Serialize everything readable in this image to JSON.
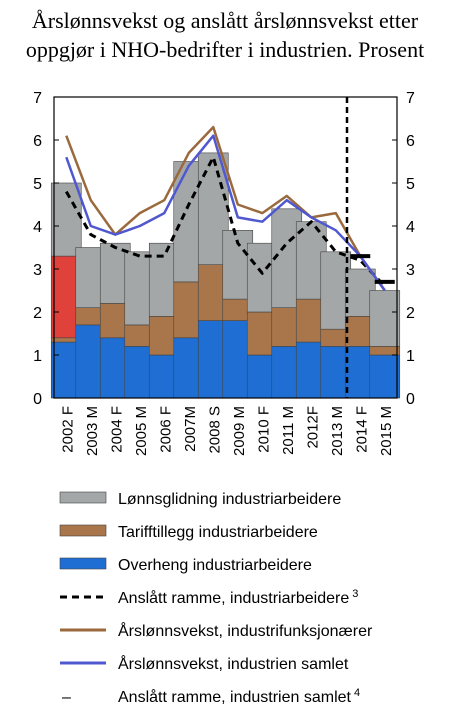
{
  "chart_data": {
    "type": "bar",
    "title_lines": [
      "Årslønnsvekst og anslått årslønnsvekst etter",
      "oppgjør i NHO-bedrifter i industrien. Prosent"
    ],
    "xlabel": "",
    "ylabel": "",
    "ylim": [
      0,
      7
    ],
    "yticks": [
      "0",
      "1",
      "2",
      "3",
      "4",
      "5",
      "6",
      "7"
    ],
    "categories": [
      "2002 F",
      "2003 M",
      "2004 F",
      "2005 M",
      "2006 F",
      "2007M",
      "2008 S",
      "2009 M",
      "2010 F",
      "2011 M",
      "2012F",
      "2013 M",
      "2014 F",
      "2015 M"
    ],
    "stacked_series": [
      {
        "name": "Overheng industriarbeidere",
        "color": "#1f6ed4",
        "values": [
          1.3,
          1.7,
          1.4,
          1.2,
          1.0,
          1.4,
          1.8,
          1.8,
          1.0,
          1.2,
          1.3,
          1.2,
          1.2,
          1.0
        ]
      },
      {
        "name": "Tarifftillegg industriarbeidere",
        "color": "#a9754a",
        "values": [
          0.1,
          0.4,
          0.8,
          0.5,
          0.9,
          1.3,
          1.3,
          0.5,
          1.0,
          0.9,
          1.0,
          0.4,
          0.7,
          0.2
        ]
      },
      {
        "name": "",
        "color": "#e0413a",
        "values": [
          1.9,
          0.0,
          0.0,
          0.0,
          0.0,
          0.0,
          0.0,
          0.0,
          0.0,
          0.0,
          0.0,
          0.0,
          0.0,
          0.0
        ]
      },
      {
        "name": "Lønnsglidning industriarbeidere",
        "color": "#a4a7a7",
        "values": [
          1.7,
          1.4,
          1.4,
          1.7,
          1.7,
          2.8,
          2.6,
          1.6,
          1.6,
          2.3,
          1.8,
          1.8,
          1.1,
          1.3
        ]
      }
    ],
    "line_series": [
      {
        "name": "Anslått ramme,  industriarbeidere",
        "superscript": "3",
        "color": "#000000",
        "dash": true,
        "values": [
          4.8,
          3.8,
          3.5,
          3.3,
          3.3,
          4.5,
          5.6,
          3.6,
          2.9,
          3.6,
          4.1,
          3.4,
          3.2,
          2.6
        ]
      },
      {
        "name": "Årslønnsvekst, industrifunksjonærer",
        "color": "#9a6a3d",
        "dash": false,
        "values": [
          6.1,
          4.6,
          3.8,
          4.3,
          4.6,
          5.7,
          6.3,
          4.5,
          4.3,
          4.7,
          4.2,
          4.3,
          3.3,
          2.5
        ]
      },
      {
        "name": "Årslønnsvekst, industrien samlet",
        "color": "#5058d0",
        "dash": false,
        "values": [
          5.6,
          4.0,
          3.8,
          4.0,
          4.3,
          5.4,
          6.1,
          4.2,
          4.1,
          4.6,
          4.2,
          3.9,
          3.3,
          2.5
        ]
      }
    ],
    "point_series": {
      "name": "Anslått ramme, industrien samlet",
      "superscript": "4",
      "color": "#000000",
      "points": [
        {
          "category": "2014 F",
          "value": 3.3
        },
        {
          "category": "2015 M",
          "value": 2.7
        }
      ]
    },
    "forecast_divider_after": "2013 M",
    "legend": {
      "placement": "bottom",
      "entries": [
        {
          "label": "Lønnsglidning industriarbeidere",
          "kind": "box",
          "color": "#a4a7a7"
        },
        {
          "label": "Tarifftillegg industriarbeidere",
          "kind": "box",
          "color": "#a9754a"
        },
        {
          "label": "Overheng industriarbeidere",
          "kind": "box",
          "color": "#1f6ed4"
        },
        {
          "label": "Anslått ramme,  industriarbeidere",
          "superscript": "3",
          "kind": "dash",
          "color": "#000000"
        },
        {
          "label": "Årslønnsvekst, industrifunksjonærer",
          "kind": "line",
          "color": "#9a6a3d"
        },
        {
          "label": "Årslønnsvekst, industrien samlet",
          "kind": "line",
          "color": "#5058d0"
        },
        {
          "label": "Anslått ramme, industrien samlet",
          "superscript": "4",
          "kind": "point",
          "color": "#000000",
          "symbol": "–"
        }
      ]
    }
  }
}
